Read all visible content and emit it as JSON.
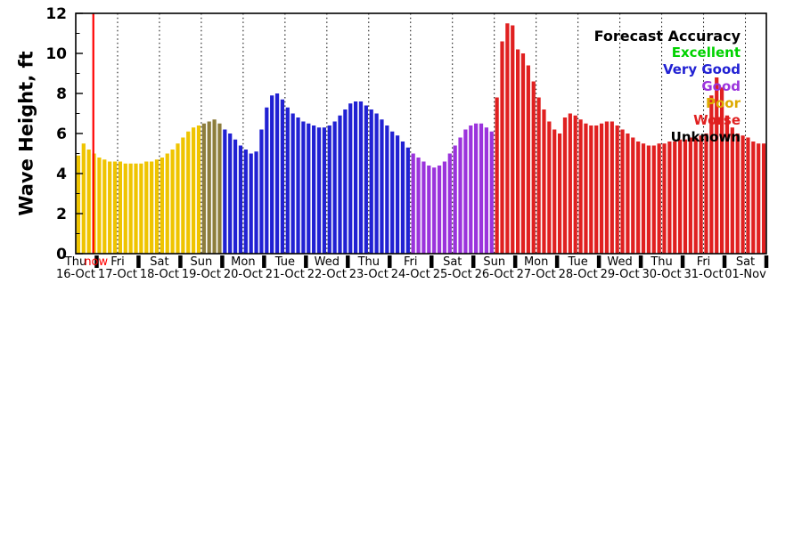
{
  "chart_data": {
    "type": "bar",
    "title": "",
    "ylabel": "Wave Height, ft",
    "xlabel": "",
    "ylim": [
      0,
      12
    ],
    "yticks": [
      0,
      2,
      4,
      6,
      8,
      10,
      12
    ],
    "grid": "vertical-dotted-daily",
    "bars_per_day": 8,
    "x_days": [
      {
        "day": "Thu",
        "date": "16-Oct"
      },
      {
        "day": "Fri",
        "date": "17-Oct"
      },
      {
        "day": "Sat",
        "date": "18-Oct"
      },
      {
        "day": "Sun",
        "date": "19-Oct"
      },
      {
        "day": "Mon",
        "date": "20-Oct"
      },
      {
        "day": "Tue",
        "date": "21-Oct"
      },
      {
        "day": "Wed",
        "date": "22-Oct"
      },
      {
        "day": "Thu",
        "date": "23-Oct"
      },
      {
        "day": "Fri",
        "date": "24-Oct"
      },
      {
        "day": "Sat",
        "date": "25-Oct"
      },
      {
        "day": "Sun",
        "date": "26-Oct"
      },
      {
        "day": "Mon",
        "date": "27-Oct"
      },
      {
        "day": "Tue",
        "date": "28-Oct"
      },
      {
        "day": "Wed",
        "date": "29-Oct"
      },
      {
        "day": "Thu",
        "date": "30-Oct"
      },
      {
        "day": "Fri",
        "date": "31-Oct"
      },
      {
        "day": "Sat",
        "date": "01-Nov"
      }
    ],
    "values": [
      4.9,
      5.5,
      5.2,
      5.0,
      4.8,
      4.7,
      4.6,
      4.6,
      4.6,
      4.5,
      4.5,
      4.5,
      4.5,
      4.6,
      4.6,
      4.7,
      4.8,
      5.0,
      5.2,
      5.5,
      5.8,
      6.1,
      6.3,
      6.4,
      6.5,
      6.6,
      6.7,
      6.5,
      6.2,
      6.0,
      5.7,
      5.4,
      5.2,
      5.0,
      5.1,
      6.2,
      7.3,
      7.9,
      8.0,
      7.7,
      7.3,
      7.0,
      6.8,
      6.6,
      6.5,
      6.4,
      6.3,
      6.3,
      6.4,
      6.6,
      6.9,
      7.2,
      7.5,
      7.6,
      7.6,
      7.4,
      7.2,
      7.0,
      6.7,
      6.4,
      6.1,
      5.9,
      5.6,
      5.3,
      5.0,
      4.8,
      4.6,
      4.4,
      4.3,
      4.4,
      4.6,
      5.0,
      5.4,
      5.8,
      6.2,
      6.4,
      6.5,
      6.5,
      6.3,
      6.1,
      7.8,
      10.6,
      11.5,
      11.4,
      10.2,
      10.0,
      9.4,
      8.6,
      7.8,
      7.2,
      6.6,
      6.2,
      6.0,
      6.8,
      7.0,
      6.9,
      6.7,
      6.5,
      6.4,
      6.4,
      6.5,
      6.6,
      6.6,
      6.4,
      6.2,
      6.0,
      5.8,
      5.6,
      5.5,
      5.4,
      5.4,
      5.5,
      5.5,
      5.6,
      5.6,
      5.7,
      5.7,
      5.8,
      5.8,
      5.9,
      6.0,
      7.9,
      8.8,
      8.3,
      6.9,
      6.3,
      6.0,
      5.9,
      5.8,
      5.6,
      5.5,
      5.5
    ],
    "color_segments": [
      {
        "accuracy": "Poor",
        "color": "#EFC400",
        "from": 0,
        "to": 23
      },
      {
        "accuracy": "transition",
        "color": "#8D7D3C",
        "from": 24,
        "to": 27
      },
      {
        "accuracy": "Very Good",
        "color": "#2121D3",
        "from": 28,
        "to": 63
      },
      {
        "accuracy": "Good",
        "color": "#9B33DC",
        "from": 64,
        "to": 79
      },
      {
        "accuracy": "Worse",
        "color": "#E02020",
        "from": 80,
        "to": 131
      }
    ],
    "now": {
      "label": "now",
      "day_index": 0,
      "day_fraction": 0.42,
      "color": "#FF0000"
    },
    "legend": {
      "title": "Forecast Accuracy",
      "items": [
        {
          "label": "Excellent",
          "color": "#00D200"
        },
        {
          "label": "Very Good",
          "color": "#2121D3"
        },
        {
          "label": "Good",
          "color": "#9B33DC"
        },
        {
          "label": "Poor",
          "color": "#DDAA00"
        },
        {
          "label": "Worse",
          "color": "#E02020"
        },
        {
          "label": "Unknown",
          "color": "#000000"
        }
      ]
    },
    "axis_color": "#000000"
  }
}
